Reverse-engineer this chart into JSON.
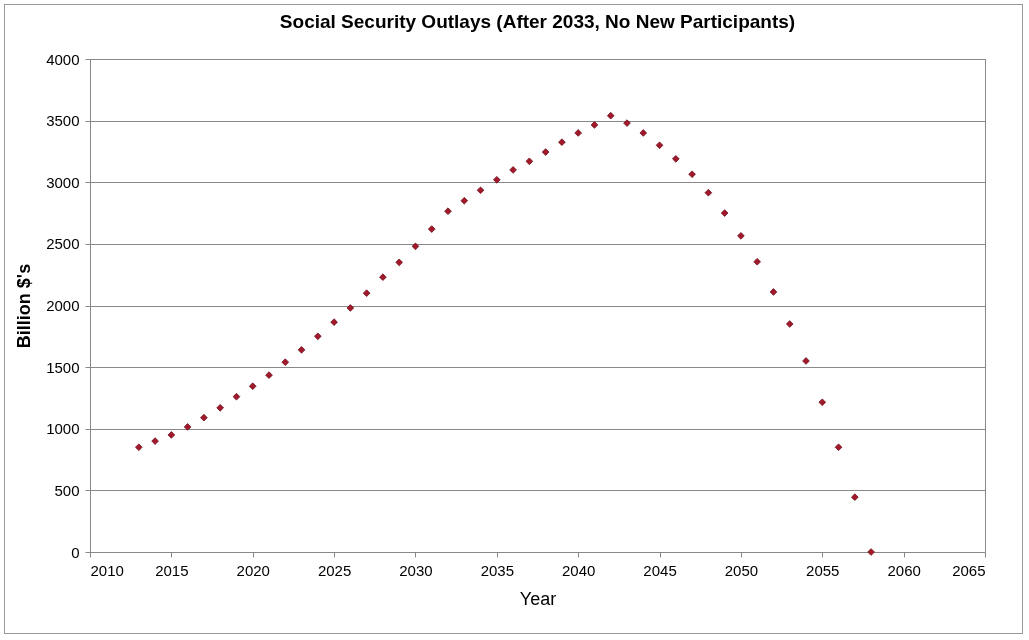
{
  "chart_data": {
    "type": "scatter",
    "title": "Social Security Outlays (After 2033, No New Participants)",
    "xlabel": "Year",
    "ylabel": "Billion $'s",
    "x": [
      2013,
      2014,
      2015,
      2016,
      2017,
      2018,
      2019,
      2020,
      2021,
      2022,
      2023,
      2024,
      2025,
      2026,
      2027,
      2028,
      2029,
      2030,
      2031,
      2032,
      2033,
      2034,
      2035,
      2036,
      2037,
      2038,
      2039,
      2040,
      2041,
      2042,
      2043,
      2044,
      2045,
      2046,
      2047,
      2048,
      2049,
      2050,
      2051,
      2052,
      2053,
      2054,
      2055,
      2056,
      2057,
      2058
    ],
    "series": [
      {
        "color": "#a3192b",
        "values": [
          850,
          900,
          950,
          1015,
          1090,
          1170,
          1260,
          1345,
          1435,
          1540,
          1640,
          1750,
          1865,
          1980,
          2100,
          2230,
          2350,
          2480,
          2620,
          2765,
          2850,
          2935,
          3020,
          3100,
          3170,
          3245,
          3325,
          3400,
          3465,
          3540,
          3480,
          3400,
          3300,
          3190,
          3065,
          2915,
          2750,
          2565,
          2355,
          2110,
          1850,
          1550,
          1215,
          850,
          445,
          0
        ]
      }
    ],
    "xlim": [
      2010,
      2065
    ],
    "xticks": [
      2010,
      2015,
      2020,
      2025,
      2030,
      2035,
      2040,
      2045,
      2050,
      2055,
      2060,
      2065
    ],
    "ylim": [
      0,
      4000
    ],
    "yticks": [
      0,
      500,
      1000,
      1500,
      2000,
      2500,
      3000,
      3500,
      4000
    ],
    "grid": "y",
    "marker": "diamond",
    "legend": false
  }
}
